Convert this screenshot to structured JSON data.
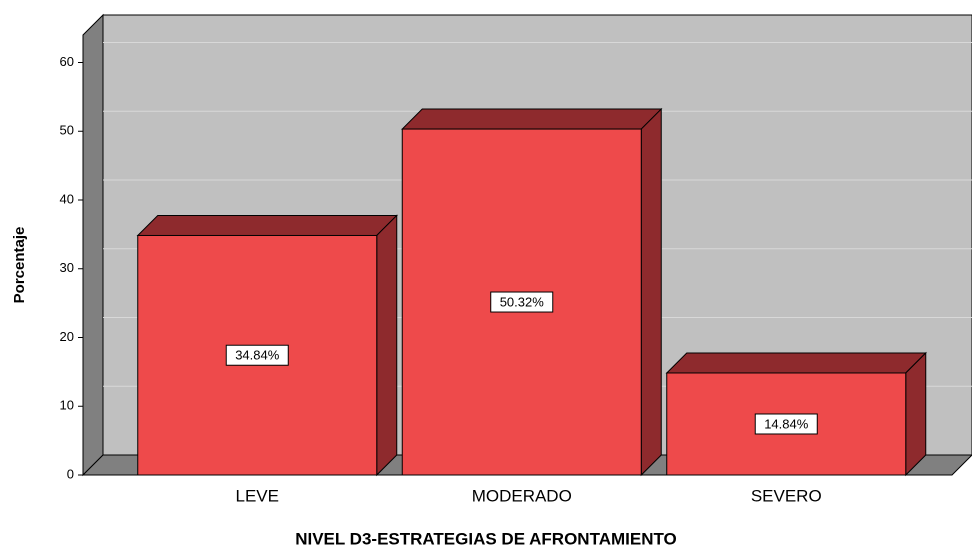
{
  "chart_data": {
    "type": "bar3d",
    "categories": [
      "LEVE",
      "MODERADO",
      "SEVERO"
    ],
    "values": [
      34.84,
      50.32,
      14.84
    ],
    "value_labels": [
      "34.84%",
      "50.32%",
      "14.84%"
    ],
    "color": "#ee4a4b",
    "xlabel": "NIVEL D3-ESTRATEGIAS DE AFRONTAMIENTO",
    "ylabel": "Porcentaje",
    "ylim": [
      0,
      64
    ],
    "yticks": [
      0,
      10,
      20,
      30,
      40,
      50,
      60
    ],
    "grid": true
  }
}
